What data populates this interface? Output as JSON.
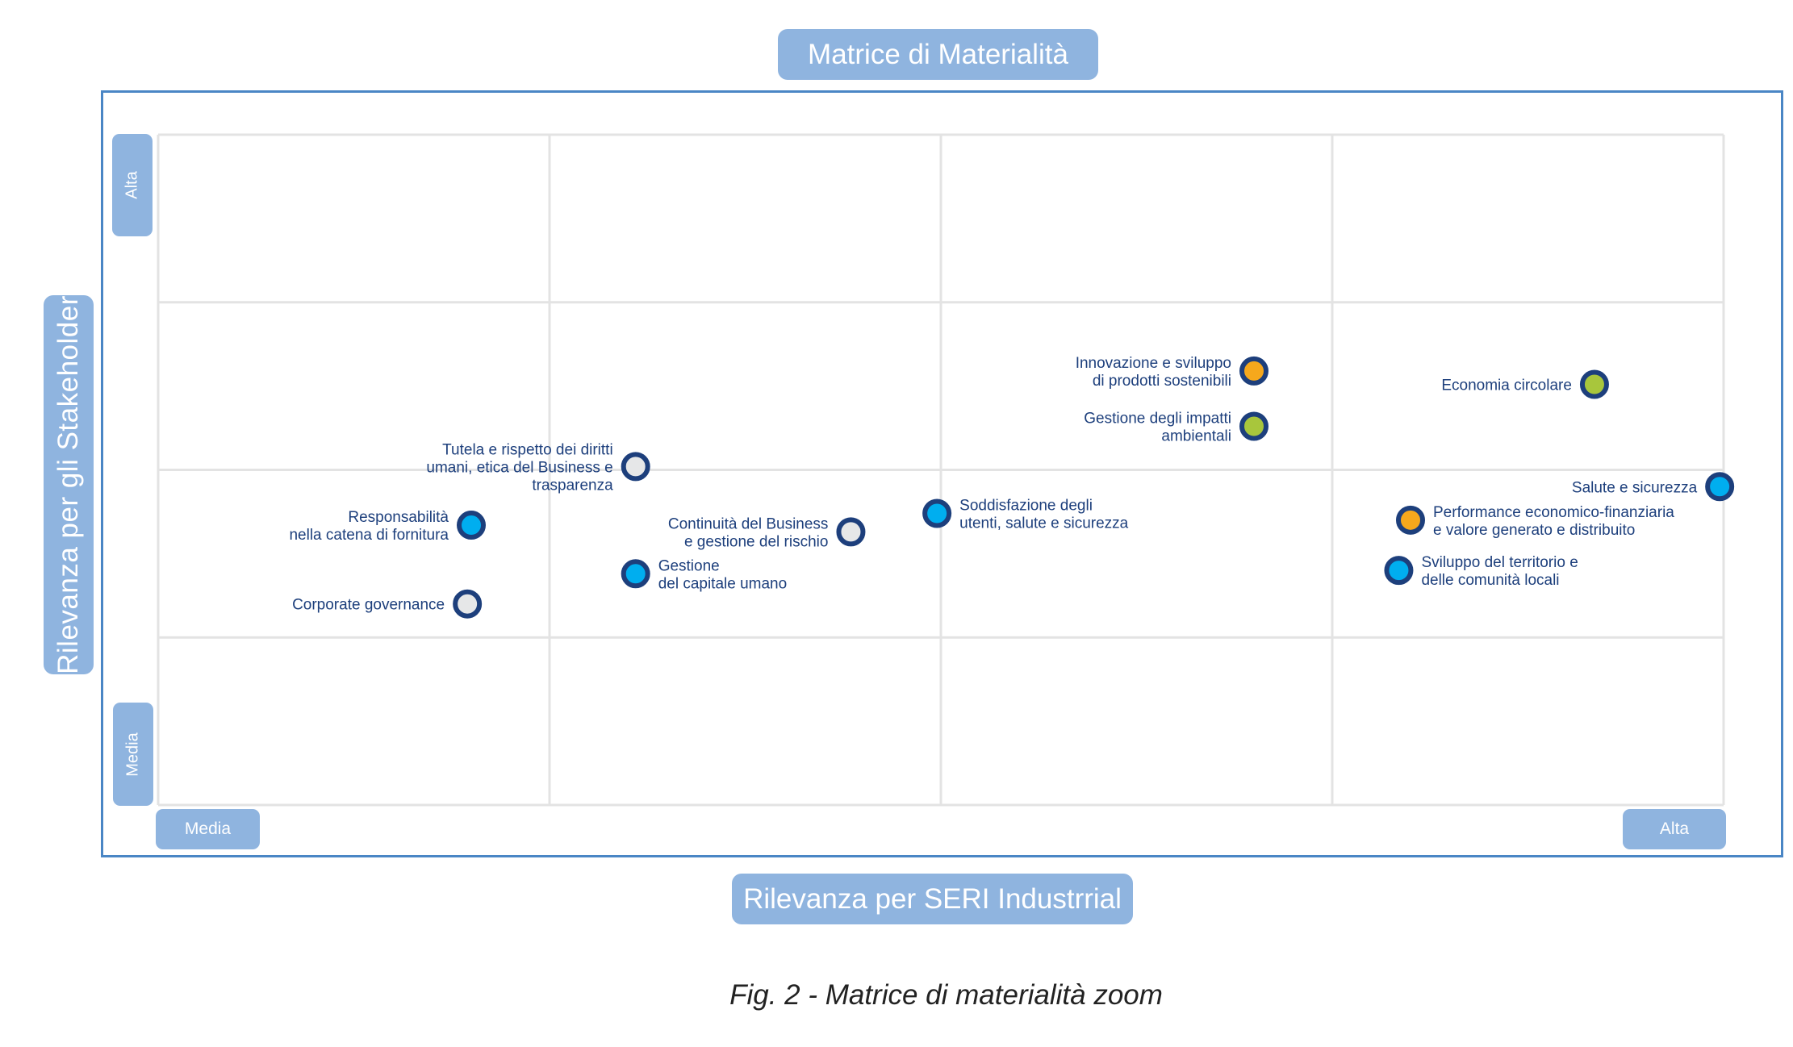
{
  "title": "Matrice di Materialità",
  "caption": "Fig. 2 - Matrice di materialità zoom",
  "chart_data": {
    "type": "scatter",
    "title": "Matrice di Materialità",
    "xlabel": "Rilevanza per SERI Industrrial",
    "ylabel": "Rilevanza per gli Stakeholder",
    "x_tick_labels": [
      "Media",
      "Alta"
    ],
    "y_tick_labels": [
      "Alta",
      "Media"
    ],
    "xlim": [
      0,
      4
    ],
    "ylim": [
      0,
      4
    ],
    "grid": true,
    "colors": {
      "blue": "#00aeef",
      "gray": "#e6e7e8",
      "orange": "#f6a81c",
      "green": "#a8c63c",
      "outline": "#1d3f7c",
      "label": "#1d3f7c"
    },
    "points": [
      {
        "name": "Innovazione e sviluppo\ndi prodotti sostenibili",
        "x": 2.8,
        "y": 2.59,
        "color": "orange",
        "label_side": "left"
      },
      {
        "name": "Gestione degli impatti\nambientali",
        "x": 2.8,
        "y": 2.26,
        "color": "green",
        "label_side": "left"
      },
      {
        "name": "Economia circolare",
        "x": 3.67,
        "y": 2.51,
        "color": "green",
        "label_side": "left"
      },
      {
        "name": "Salute e sicurezza",
        "x": 3.99,
        "y": 1.9,
        "color": "blue",
        "label_side": "left"
      },
      {
        "name": "Performance economico-finanziaria\ne valore generato e distribuito",
        "x": 3.2,
        "y": 1.7,
        "color": "orange",
        "label_side": "right"
      },
      {
        "name": "Sviluppo del territorio e\ndelle comunità locali",
        "x": 3.17,
        "y": 1.4,
        "color": "blue",
        "label_side": "right"
      },
      {
        "name": "Soddisfazione degli\nutenti, salute e sicurezza",
        "x": 1.99,
        "y": 1.74,
        "color": "blue",
        "label_side": "right"
      },
      {
        "name": "Continuità del Business\ne gestione del rischio",
        "x": 1.77,
        "y": 1.63,
        "color": "gray",
        "label_side": "left"
      },
      {
        "name": "Tutela e rispetto dei diritti\numani, etica del Business e\ntrasparenza",
        "x": 1.22,
        "y": 2.02,
        "color": "gray",
        "label_side": "left"
      },
      {
        "name": "Gestione\ndel capitale umano",
        "x": 1.22,
        "y": 1.38,
        "color": "blue",
        "label_side": "right"
      },
      {
        "name": "Responsabilità\nnella catena di fornitura",
        "x": 0.8,
        "y": 1.67,
        "color": "blue",
        "label_side": "left"
      },
      {
        "name": "Corporate governance",
        "x": 0.79,
        "y": 1.2,
        "color": "gray",
        "label_side": "left"
      }
    ]
  }
}
